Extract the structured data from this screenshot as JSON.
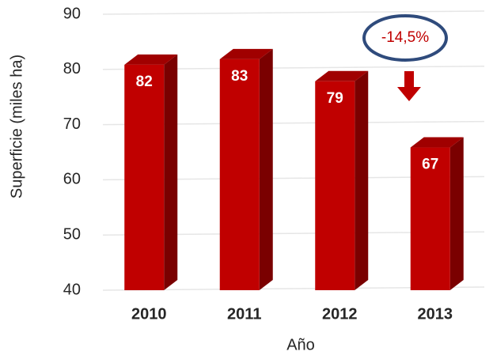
{
  "chart_data": {
    "type": "bar3d",
    "xlabel": "Año",
    "ylabel": "Superficie (miles ha)",
    "categories": [
      "2010",
      "2011",
      "2012",
      "2013"
    ],
    "values": [
      82,
      83,
      79,
      67
    ],
    "color": "#c00000",
    "ylim": [
      40,
      90
    ],
    "yticks": [
      40,
      50,
      60,
      70,
      80,
      90
    ],
    "grid": true,
    "annotation": "-14,5%"
  }
}
